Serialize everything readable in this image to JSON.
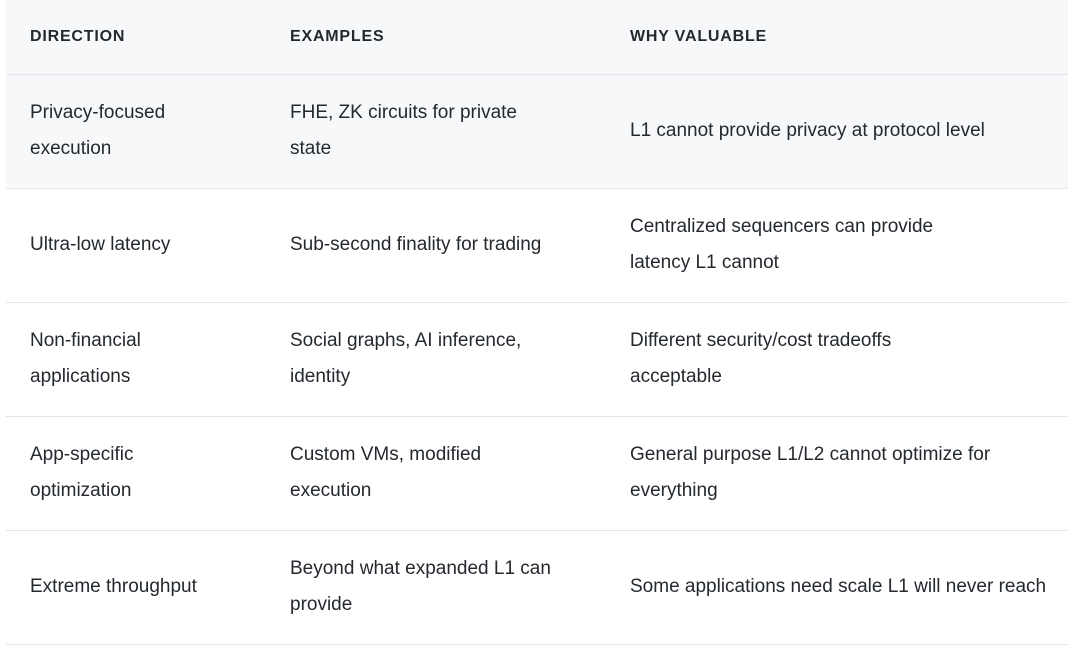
{
  "table": {
    "headers": [
      "DIRECTION",
      "EXAMPLES",
      "WHY VALUABLE"
    ],
    "rows": [
      [
        "Privacy-focused execution",
        "FHE, ZK circuits for private state",
        "L1 cannot provide privacy at protocol level"
      ],
      [
        "Ultra-low latency",
        "Sub-second finality for trading",
        "Centralized sequencers can provide latency L1 cannot"
      ],
      [
        "Non-financial applications",
        "Social graphs, AI inference, identity",
        "Different security/cost tradeoffs acceptable"
      ],
      [
        "App-specific optimization",
        "Custom VMs, modified execution",
        "General purpose L1/L2 cannot optimize for everything"
      ],
      [
        "Extreme throughput",
        "Beyond what expanded L1 can provide",
        "Some applications need scale L1 will never reach"
      ]
    ]
  }
}
